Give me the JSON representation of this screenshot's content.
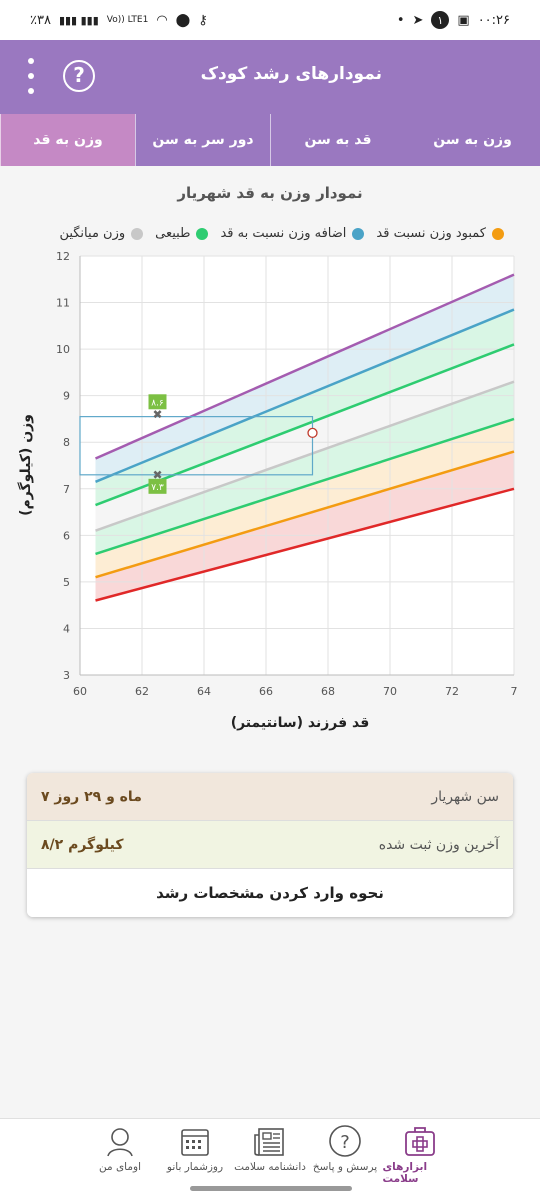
{
  "status_bar": {
    "time": "۰۰:۲۶",
    "battery": "٪۳۸",
    "network": "Vo)) LTE1",
    "notification_count": "۱"
  },
  "app_bar": {
    "title": "نمودارهای رشد کودک",
    "help_label": "?"
  },
  "tabs": [
    {
      "label": "وزن به سن"
    },
    {
      "label": "قد به سن"
    },
    {
      "label": "دور سر به سن"
    },
    {
      "label": "وزن به قد",
      "active": true
    }
  ],
  "chart_title": "نمودار وزن به قد شهریار",
  "legend": [
    {
      "label": "کمبود وزن نسبت قد",
      "color": "#f39c12"
    },
    {
      "label": "اضافه وزن نسبت به قد",
      "color": "#4aa3c7"
    },
    {
      "label": "طبیعی",
      "color": "#2ecc71"
    },
    {
      "label": "وزن میانگین",
      "color": "#c8c8c8"
    }
  ],
  "chart_data": {
    "type": "line",
    "title": "نمودار وزن به قد شهریار",
    "xlabel": "قد فرزند (سانتیمتر)",
    "ylabel": "وزن (کیلوگرم)",
    "xlim": [
      60,
      74
    ],
    "ylim": [
      3,
      12
    ],
    "x_ticks": [
      "60",
      "62",
      "64",
      "66",
      "68",
      "70",
      "72",
      "7"
    ],
    "y_ticks": [
      "3",
      "4",
      "5",
      "6",
      "7",
      "8",
      "9",
      "10",
      "11",
      "12"
    ],
    "x": [
      60.5,
      74
    ],
    "series": [
      {
        "color": "#e02828",
        "values": [
          4.6,
          7.0
        ]
      },
      {
        "color": "#f39c12",
        "values": [
          5.1,
          7.8
        ]
      },
      {
        "color": "#2ecc71",
        "values": [
          5.6,
          8.5
        ]
      },
      {
        "color": "#c8c8c8",
        "values": [
          6.1,
          9.3
        ]
      },
      {
        "color": "#2ecc71",
        "values": [
          6.65,
          10.1
        ]
      },
      {
        "color": "#4aa3c7",
        "values": [
          7.15,
          10.85
        ]
      },
      {
        "color": "#a45cb0",
        "values": [
          7.65,
          11.6
        ]
      }
    ],
    "markers": [
      {
        "x": 62.5,
        "y": 8.6,
        "label": "۸.۶"
      },
      {
        "x": 62.5,
        "y": 7.3,
        "label": "۷.۳"
      }
    ],
    "point": {
      "x": 67.5,
      "y": 8.2
    },
    "highlight_range": {
      "x": [
        60,
        67.5
      ],
      "y": [
        7.3,
        8.55
      ]
    },
    "grid": true
  },
  "info": {
    "age_label": "سن شهریار",
    "age_value": "۷ ماه و ۲۹ روز",
    "weight_label": "آخرین وزن ثبت شده",
    "weight_value": "۸/۲ کیلوگرم",
    "howto_label": "نحوه وارد کردن مشخصات رشد"
  },
  "bottom_nav": [
    {
      "label": "ابزارهای سلامت",
      "icon": "health-kit-icon",
      "active": true
    },
    {
      "label": "پرسش و پاسخ",
      "icon": "question-icon"
    },
    {
      "label": "دانشنامه سلامت",
      "icon": "newspaper-icon"
    },
    {
      "label": "روزشمار بانو",
      "icon": "calendar-icon"
    },
    {
      "label": "اومای من",
      "icon": "profile-icon"
    }
  ]
}
